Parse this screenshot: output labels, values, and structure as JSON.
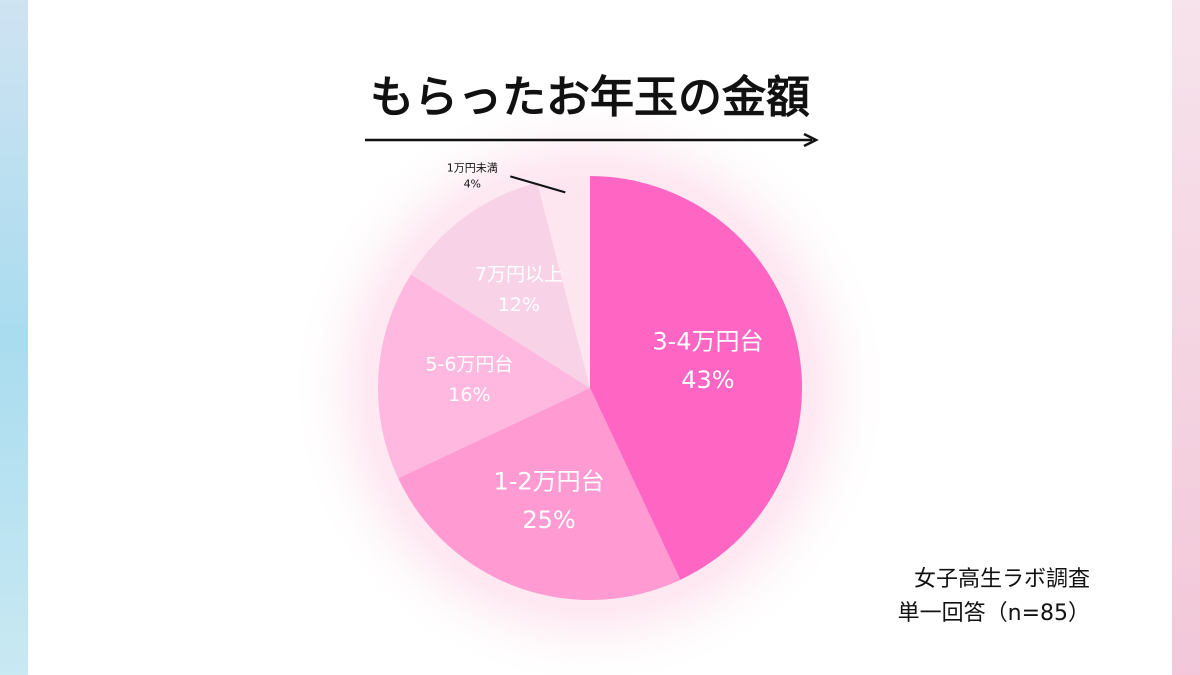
{
  "chart_data": {
    "type": "pie",
    "title": "もらったお年玉の金額",
    "categories": [
      "3-4万円台",
      "1-2万円台",
      "5-6万円台",
      "7万円以上",
      "1万円未満"
    ],
    "values": [
      43,
      25,
      16,
      12,
      4
    ],
    "value_labels": [
      "43%",
      "25%",
      "16%",
      "12%",
      "4%"
    ],
    "colors": [
      "#ff66c4",
      "#ff9ad2",
      "#ffb8df",
      "#f8d3e7",
      "#fde6f0"
    ],
    "notes": [
      "女子高生ラボ調査",
      "単一回答（n=85）"
    ]
  }
}
